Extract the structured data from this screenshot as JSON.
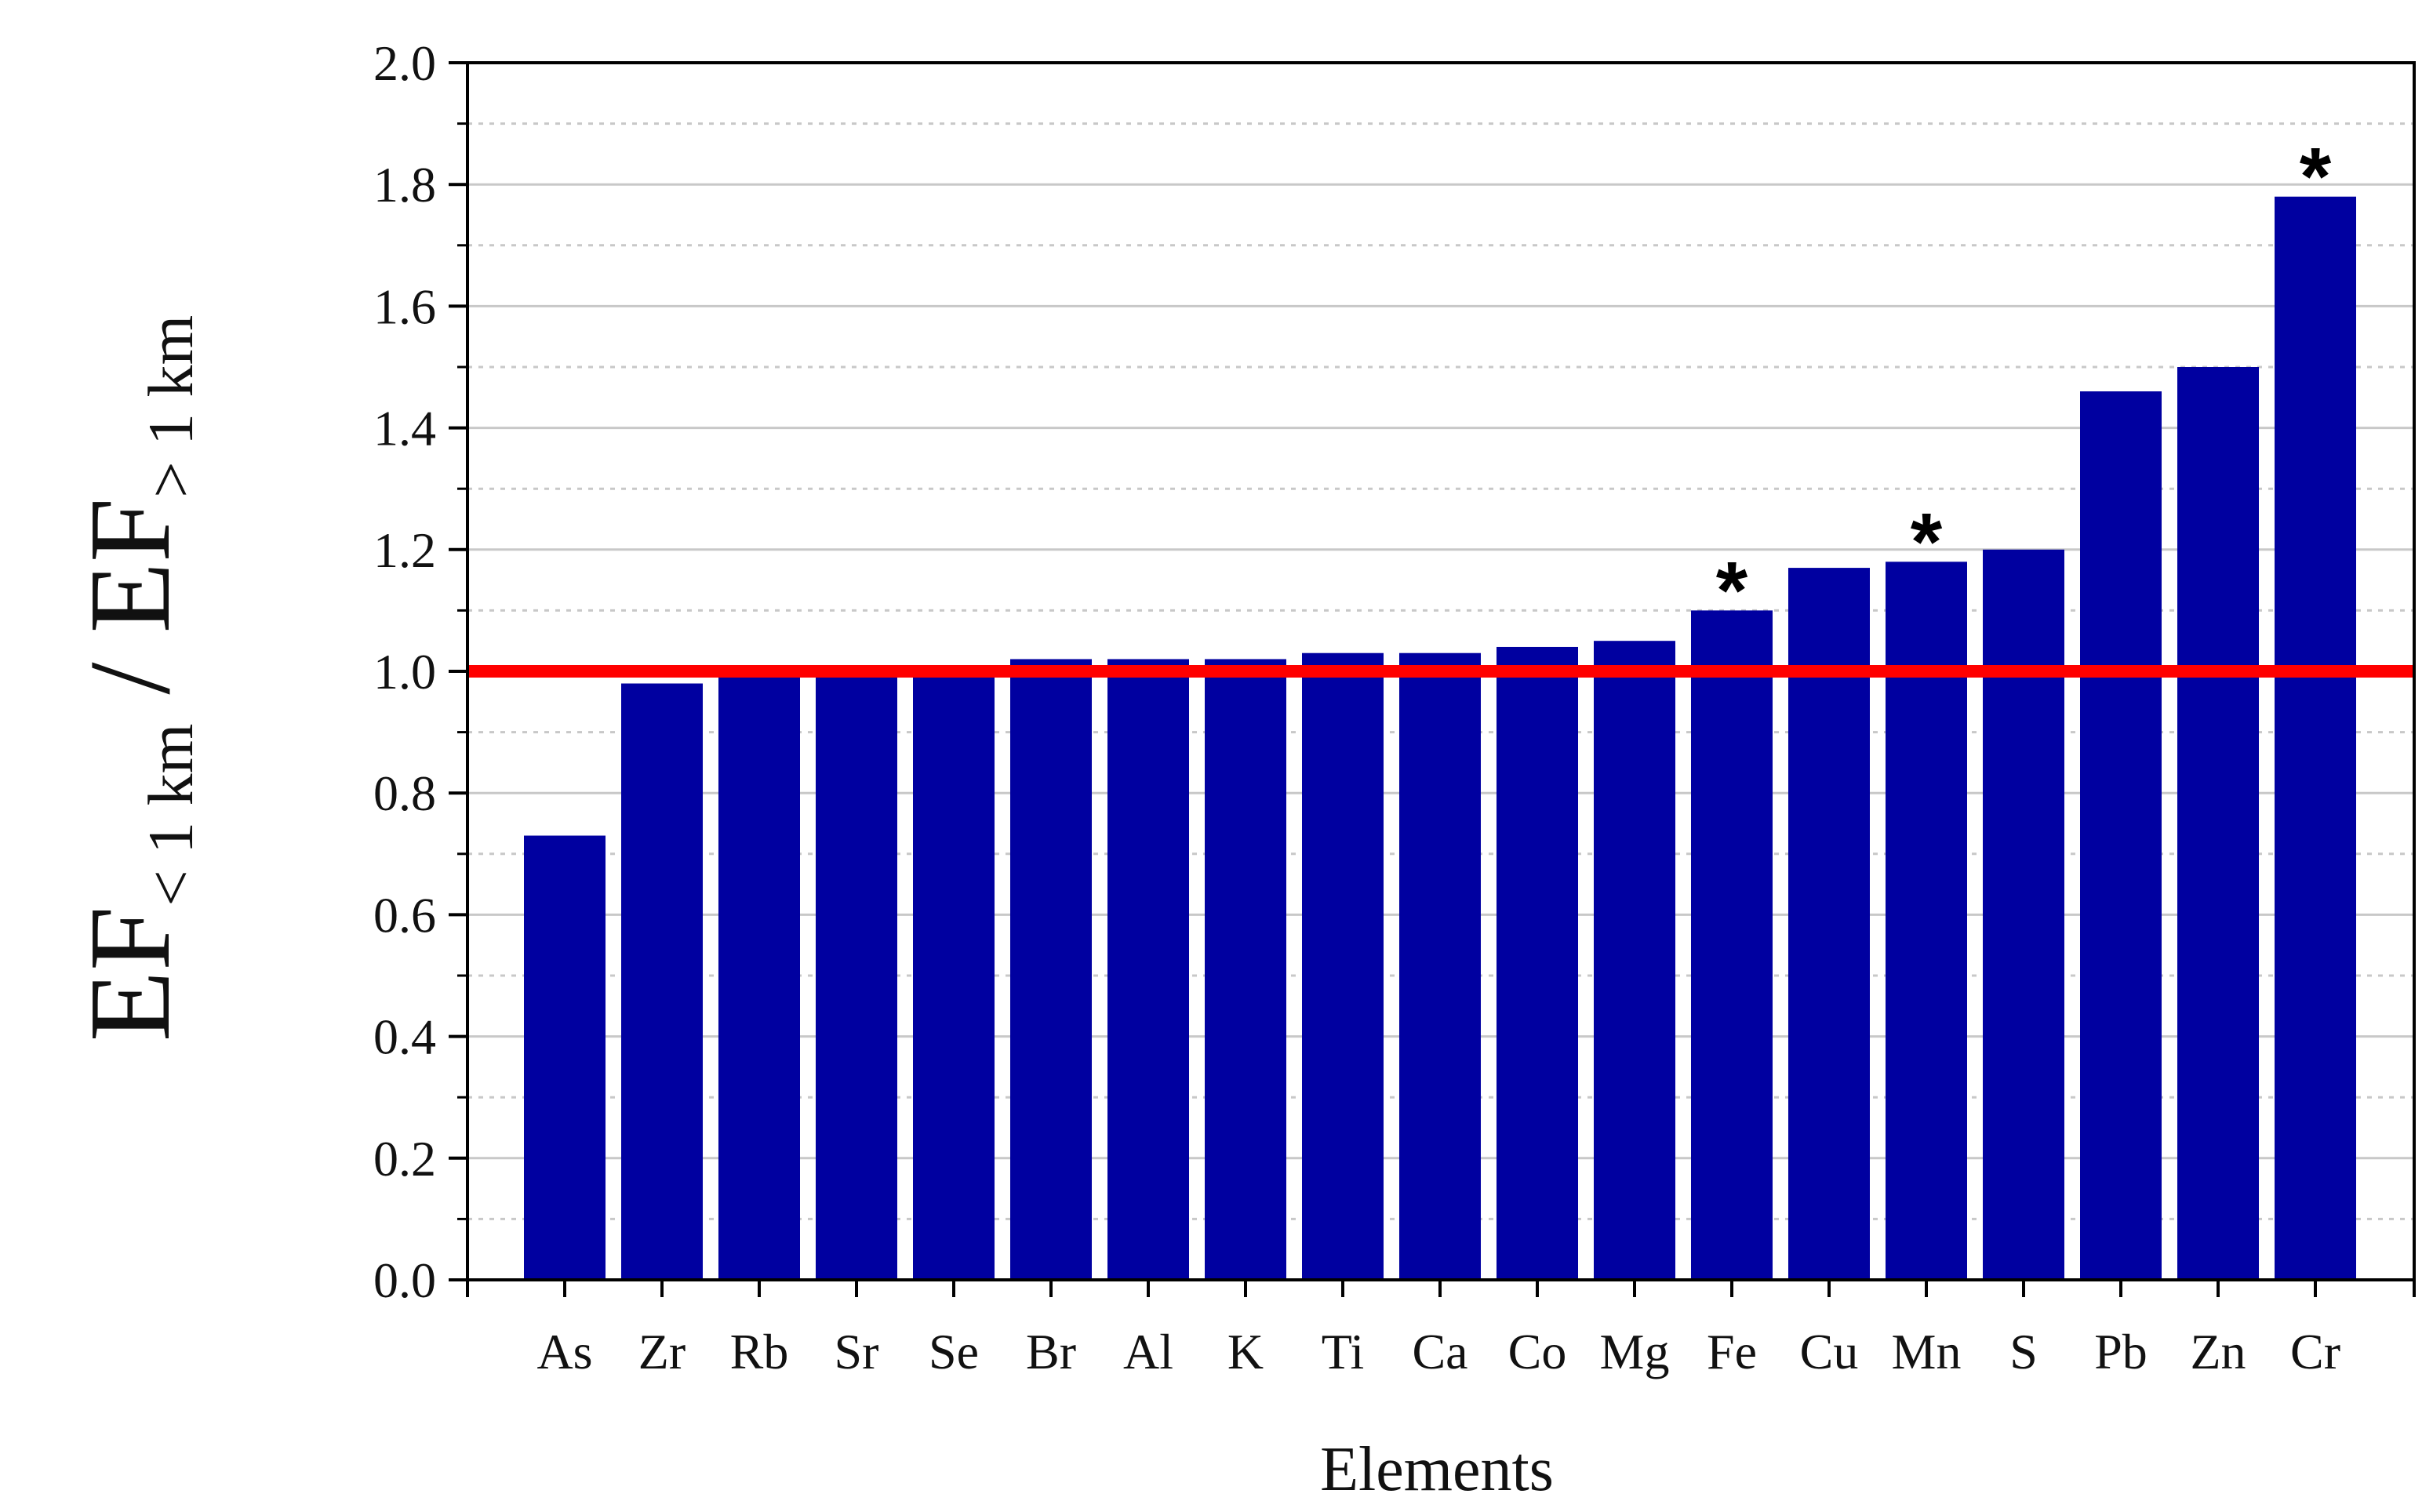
{
  "chart_data": {
    "type": "bar",
    "categories": [
      "As",
      "Zr",
      "Rb",
      "Sr",
      "Se",
      "Br",
      "Al",
      "K",
      "Ti",
      "Ca",
      "Co",
      "Mg",
      "Fe",
      "Cu",
      "Mn",
      "S",
      "Pb",
      "Zn",
      "Cr"
    ],
    "values": [
      0.73,
      0.98,
      1.0,
      1.0,
      1.0,
      1.02,
      1.02,
      1.02,
      1.03,
      1.03,
      1.04,
      1.05,
      1.1,
      1.17,
      1.18,
      1.2,
      1.46,
      1.5,
      1.78
    ],
    "significant": [
      "Fe",
      "Mn",
      "Cr"
    ],
    "significance_marker": "*",
    "xlabel": "Elements",
    "ylabel": {
      "main1": "EF",
      "sub1": "< 1 km",
      "sep": " / ",
      "main2": "EF",
      "sub2": "> 1 km"
    },
    "ylim": [
      0,
      2.0
    ],
    "yticks": [
      "0.0",
      "0.2",
      "0.4",
      "0.6",
      "0.8",
      "1.0",
      "1.2",
      "1.4",
      "1.6",
      "1.8",
      "2.0"
    ],
    "reference_line": 1.0,
    "grid": "horizontal",
    "colors": {
      "bar": "#0000A0",
      "reference_line": "#FF0000",
      "grid": "#C8C8C8",
      "axis": "#000000"
    }
  }
}
